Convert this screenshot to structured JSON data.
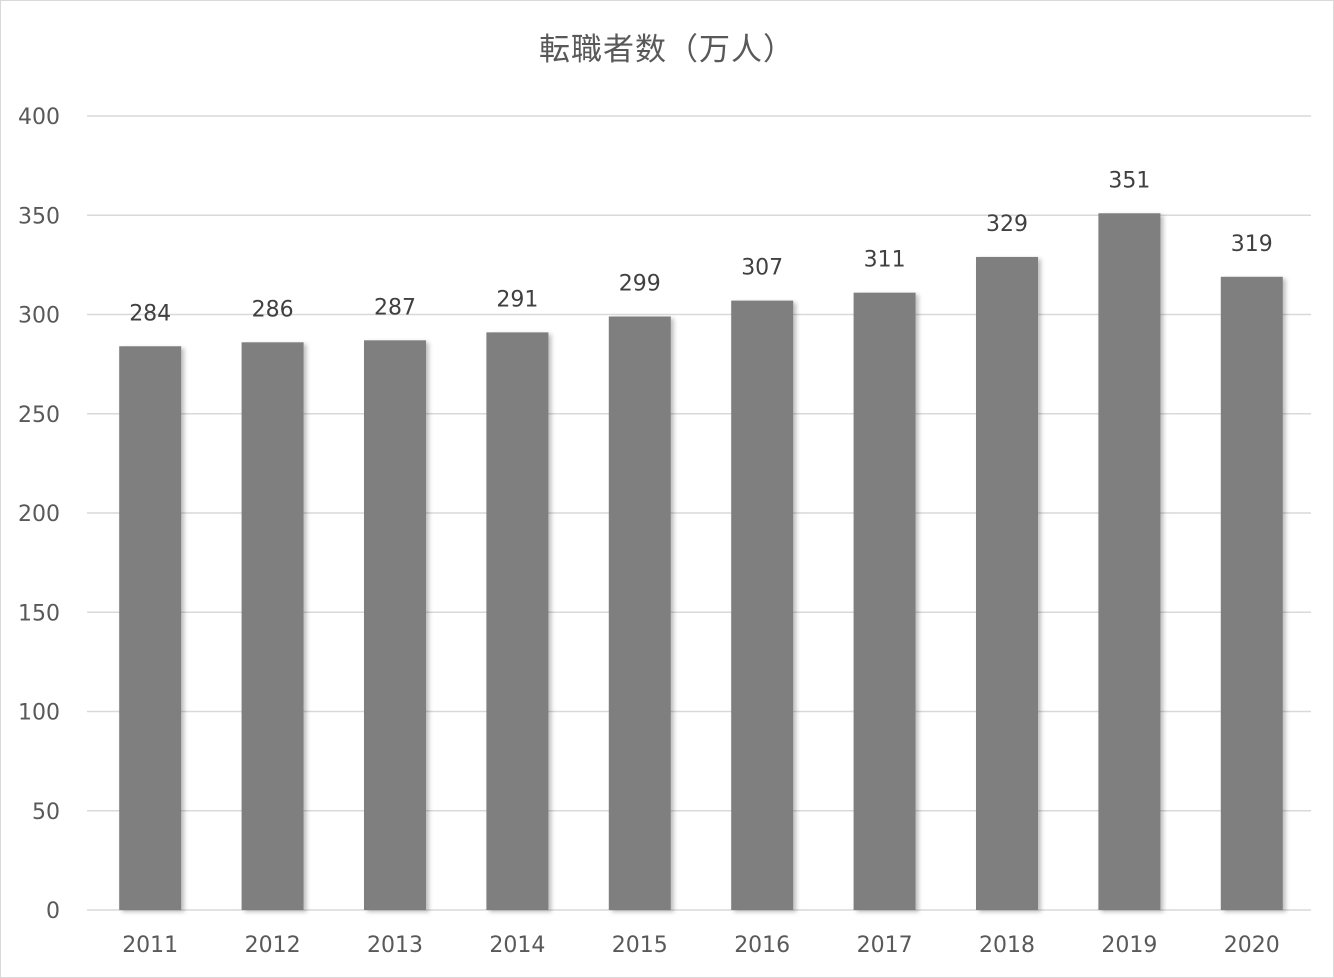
{
  "chart_data": {
    "type": "bar",
    "title": "転職者数（万人）",
    "categories": [
      "2011",
      "2012",
      "2013",
      "2014",
      "2015",
      "2016",
      "2017",
      "2018",
      "2019",
      "2020"
    ],
    "values": [
      284,
      286,
      287,
      291,
      299,
      307,
      311,
      329,
      351,
      319
    ],
    "ylim": [
      0,
      400
    ],
    "yticks": [
      0,
      50,
      100,
      150,
      200,
      250,
      300,
      350,
      400
    ],
    "xlabel": "",
    "ylabel": "",
    "grid": true,
    "legend": "none",
    "data_labels": true,
    "colors": {
      "bar": "#7f7f7f",
      "grid": "#d9d9d9",
      "text": "#595959"
    }
  }
}
